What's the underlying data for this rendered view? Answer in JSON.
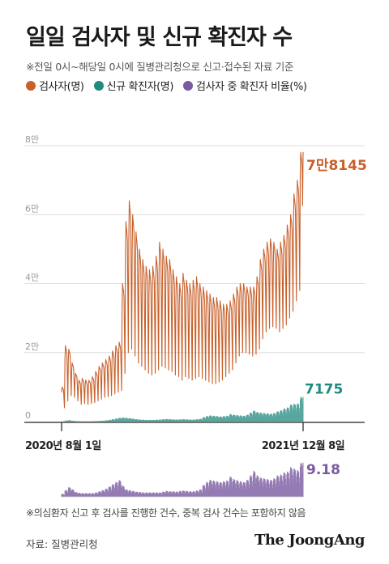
{
  "title": "일일 검사자 및 신규 확진자 수",
  "subtitle": "※전일 0시~해당일 0시에 질병관리청으로 신고·접수된 자료 기준",
  "legend": {
    "tests": "검사자(명)",
    "cases": "신규 확진자(명)",
    "rate": "검사자 중 확진자 비율(%)"
  },
  "colors": {
    "tests": "#c8602a",
    "cases": "#1f8a7e",
    "rate": "#7a5aa0",
    "grid": "#dddddd"
  },
  "footnote": "※의심환자 신고 후 검사를 진행한 건수, 중복 검사 건수는 포함하지 않음",
  "source": "자료: 질병관리청",
  "brand": "The JoongAng",
  "chart_data": {
    "type": "line",
    "x_range": [
      "2020-08-01",
      "2021-12-08"
    ],
    "x_tick_labels": [
      "2020년 8월 1일",
      "2021년 12월 8일"
    ],
    "y_tick_labels": [
      "0",
      "2만",
      "4만",
      "6만",
      "8만"
    ],
    "ylim": [
      0,
      80000
    ],
    "y_ticks": [
      0,
      20000,
      40000,
      60000,
      80000
    ],
    "grid": true,
    "series": [
      {
        "name": "검사자(명)",
        "key": "tests",
        "weekly_peak": [
          10000,
          22000,
          21000,
          17000,
          14000,
          12000,
          12500,
          12000,
          12000,
          13000,
          14500,
          16000,
          17000,
          18000,
          19000,
          20500,
          22000,
          23000,
          40000,
          58000,
          64000,
          60000,
          55000,
          50000,
          47000,
          45000,
          44000,
          45000,
          48000,
          52000,
          50000,
          48000,
          47000,
          44000,
          42000,
          40000,
          43000,
          41000,
          40000,
          41000,
          42000,
          40000,
          39000,
          38000,
          37000,
          36000,
          36000,
          35000,
          34000,
          34000,
          35000,
          37000,
          39000,
          40000,
          40000,
          39000,
          39000,
          39000,
          42000,
          47000,
          50000,
          52000,
          53000,
          52000,
          50000,
          52000,
          54000,
          57000,
          60000,
          66000,
          70000,
          78000
        ],
        "weekly_low": [
          4000,
          6000,
          7500,
          7000,
          6000,
          5000,
          5200,
          5000,
          5200,
          5500,
          6000,
          6500,
          7000,
          7200,
          7500,
          8000,
          8500,
          9000,
          14000,
          20000,
          21000,
          19000,
          17000,
          16000,
          15000,
          14000,
          13500,
          14000,
          15000,
          16000,
          15500,
          15000,
          14500,
          13500,
          13000,
          12000,
          13000,
          12500,
          12000,
          12500,
          13000,
          12500,
          12000,
          11500,
          11000,
          11000,
          11500,
          12000,
          13000,
          14000,
          15000,
          17000,
          19000,
          20000,
          20000,
          19500,
          19000,
          19500,
          21000,
          24000,
          26000,
          27000,
          27500,
          27000,
          26000,
          27000,
          28000,
          30000,
          32000,
          35000,
          38000,
          50000
        ],
        "last_value": 78145,
        "last_label": "7만8145"
      },
      {
        "name": "신규 확진자(명)",
        "key": "cases",
        "weekly_peak": [
          50,
          300,
          400,
          250,
          150,
          120,
          100,
          100,
          100,
          110,
          150,
          200,
          250,
          350,
          500,
          700,
          900,
          1100,
          1200,
          1100,
          1000,
          850,
          700,
          600,
          550,
          500,
          500,
          500,
          550,
          600,
          700,
          750,
          700,
          650,
          600,
          650,
          700,
          650,
          600,
          600,
          700,
          800,
          1300,
          1600,
          1800,
          1700,
          1600,
          1500,
          1600,
          1700,
          2200,
          2000,
          1900,
          1800,
          1700,
          2000,
          2600,
          3200,
          2800,
          2600,
          2500,
          2400,
          2300,
          2500,
          3000,
          3300,
          3800,
          4100,
          5000,
          5200,
          5300,
          7175
        ],
        "last_value": 7175,
        "last_label": "7175"
      },
      {
        "name": "검사자 중 확진자 비율(%)",
        "key": "rate",
        "weekly_peak": [
          0.8,
          1.8,
          2.6,
          2.0,
          1.3,
          1.1,
          1.0,
          1.0,
          1.0,
          1.0,
          1.2,
          1.5,
          1.8,
          2.2,
          2.8,
          3.4,
          4.0,
          4.5,
          3.0,
          2.0,
          1.8,
          1.6,
          1.4,
          1.3,
          1.2,
          1.2,
          1.2,
          1.2,
          1.2,
          1.2,
          1.4,
          1.6,
          1.5,
          1.5,
          1.4,
          1.6,
          1.7,
          1.6,
          1.5,
          1.5,
          1.7,
          2.0,
          3.2,
          4.0,
          4.6,
          4.4,
          4.2,
          4.0,
          4.2,
          4.4,
          5.5,
          4.8,
          4.5,
          4.2,
          4.0,
          4.6,
          5.8,
          7.0,
          5.8,
          5.2,
          5.0,
          4.8,
          4.6,
          5.0,
          5.8,
          6.0,
          6.6,
          6.8,
          8.0,
          7.6,
          7.2,
          9.18
        ],
        "last_value": 9.18,
        "last_label": "9.18"
      }
    ]
  }
}
